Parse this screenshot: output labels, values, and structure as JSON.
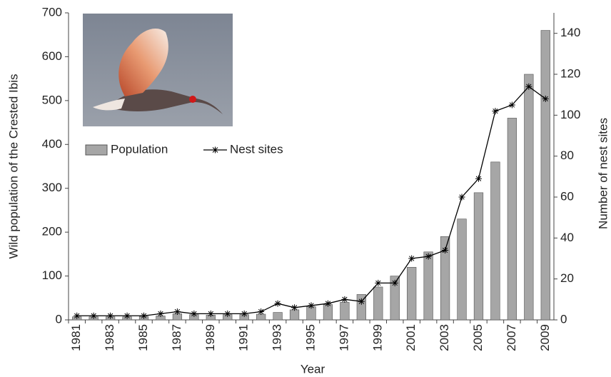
{
  "chart_data": {
    "type": "bar-line",
    "categories": [
      "1981",
      null,
      "1983",
      null,
      "1985",
      null,
      "1987",
      null,
      "1989",
      null,
      "1991",
      null,
      "1993",
      null,
      "1995",
      null,
      "1997",
      null,
      "1999",
      null,
      "2001",
      null,
      "2003",
      null,
      "2005",
      null,
      "2007",
      null,
      "2009"
    ],
    "series": [
      {
        "name": "Population",
        "type": "bar",
        "color": "#a6a6a6",
        "values": [
          7,
          7,
          7,
          7,
          8,
          9,
          14,
          12,
          11,
          12,
          12,
          13,
          17,
          23,
          30,
          35,
          40,
          58,
          75,
          100,
          120,
          155,
          190,
          230,
          290,
          360,
          460,
          560,
          660
        ]
      },
      {
        "name": "Nest sites",
        "type": "line",
        "axis": "y2",
        "color": "#000000",
        "values": [
          2,
          2,
          2,
          2,
          2,
          3,
          4,
          3,
          3,
          3,
          3,
          4,
          8,
          6,
          7,
          8,
          10,
          9,
          18,
          18,
          30,
          31,
          34,
          60,
          69,
          102,
          105,
          114,
          108
        ]
      }
    ],
    "xlabel": "Year",
    "ylabel": "Wild population of the Crested Ibis",
    "y2label": "Number of nest sites",
    "ylim": [
      0,
      700
    ],
    "yticks": [
      0,
      100,
      200,
      300,
      400,
      500,
      600,
      700
    ],
    "y2lim": [
      0,
      150
    ],
    "y2ticks": [
      0,
      20,
      40,
      60,
      80,
      100,
      120,
      140
    ]
  }
}
